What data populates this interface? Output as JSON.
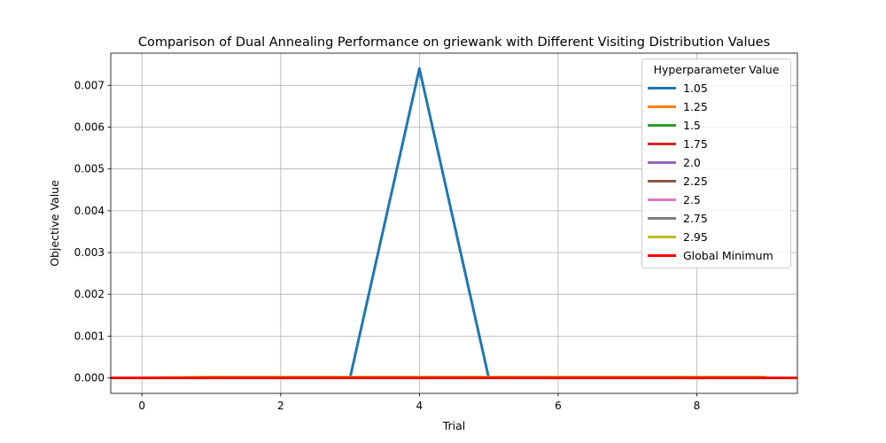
{
  "chart_data": {
    "type": "line",
    "title": "Comparison of Dual Annealing Performance on griewank with Different Visiting Distribution Values",
    "xlabel": "Trial",
    "ylabel": "Objective Value",
    "xlim": [
      -0.45,
      9.45
    ],
    "ylim": [
      -0.00037,
      0.00777
    ],
    "x_ticks": [
      0,
      2,
      4,
      6,
      8
    ],
    "x_tick_labels": [
      "0",
      "2",
      "4",
      "6",
      "8"
    ],
    "y_ticks": [
      0.0,
      0.001,
      0.002,
      0.003,
      0.004,
      0.005,
      0.006,
      0.007
    ],
    "y_tick_labels": [
      "0.000",
      "0.001",
      "0.002",
      "0.003",
      "0.004",
      "0.005",
      "0.006",
      "0.007"
    ],
    "grid": true,
    "legend_title": "Hyperparameter Value",
    "legend_position": "top-right",
    "x": [
      0,
      1,
      2,
      3,
      4,
      5,
      6,
      7,
      8,
      9
    ],
    "series": [
      {
        "name": "1.05",
        "color": "#1f77b4",
        "values": [
          0,
          0,
          0,
          0,
          0.0074,
          0,
          0,
          0,
          0,
          0
        ]
      },
      {
        "name": "1.25",
        "color": "#ff7f0e",
        "values": [
          0,
          2e-05,
          2e-05,
          2e-05,
          2e-05,
          2e-05,
          2e-05,
          2e-05,
          2e-05,
          2e-05
        ]
      },
      {
        "name": "1.5",
        "color": "#2ca02c",
        "values": [
          0,
          0,
          0,
          0,
          0,
          0,
          0,
          0,
          0,
          0
        ]
      },
      {
        "name": "1.75",
        "color": "#d62728",
        "values": [
          0,
          0,
          0,
          0,
          0,
          0,
          0,
          0,
          0,
          0
        ]
      },
      {
        "name": "2.0",
        "color": "#9467bd",
        "values": [
          0,
          0,
          0,
          0,
          0,
          0,
          0,
          0,
          0,
          0
        ]
      },
      {
        "name": "2.25",
        "color": "#8c564b",
        "values": [
          0,
          0,
          0,
          0,
          0,
          0,
          0,
          0,
          0,
          0
        ]
      },
      {
        "name": "2.5",
        "color": "#e377c2",
        "values": [
          0,
          0,
          0,
          0,
          0,
          0,
          0,
          0,
          0,
          0
        ]
      },
      {
        "name": "2.75",
        "color": "#7f7f7f",
        "values": [
          0,
          0,
          0,
          0,
          0,
          0,
          0,
          0,
          0,
          0
        ]
      },
      {
        "name": "2.95",
        "color": "#bcbd22",
        "values": [
          0,
          2e-05,
          2e-05,
          2e-05,
          2e-05,
          2e-05,
          2e-05,
          2e-05,
          2e-05,
          2e-05
        ]
      }
    ],
    "reference_line": {
      "name": "Global Minimum",
      "color": "#ff0000",
      "value": 0
    }
  }
}
